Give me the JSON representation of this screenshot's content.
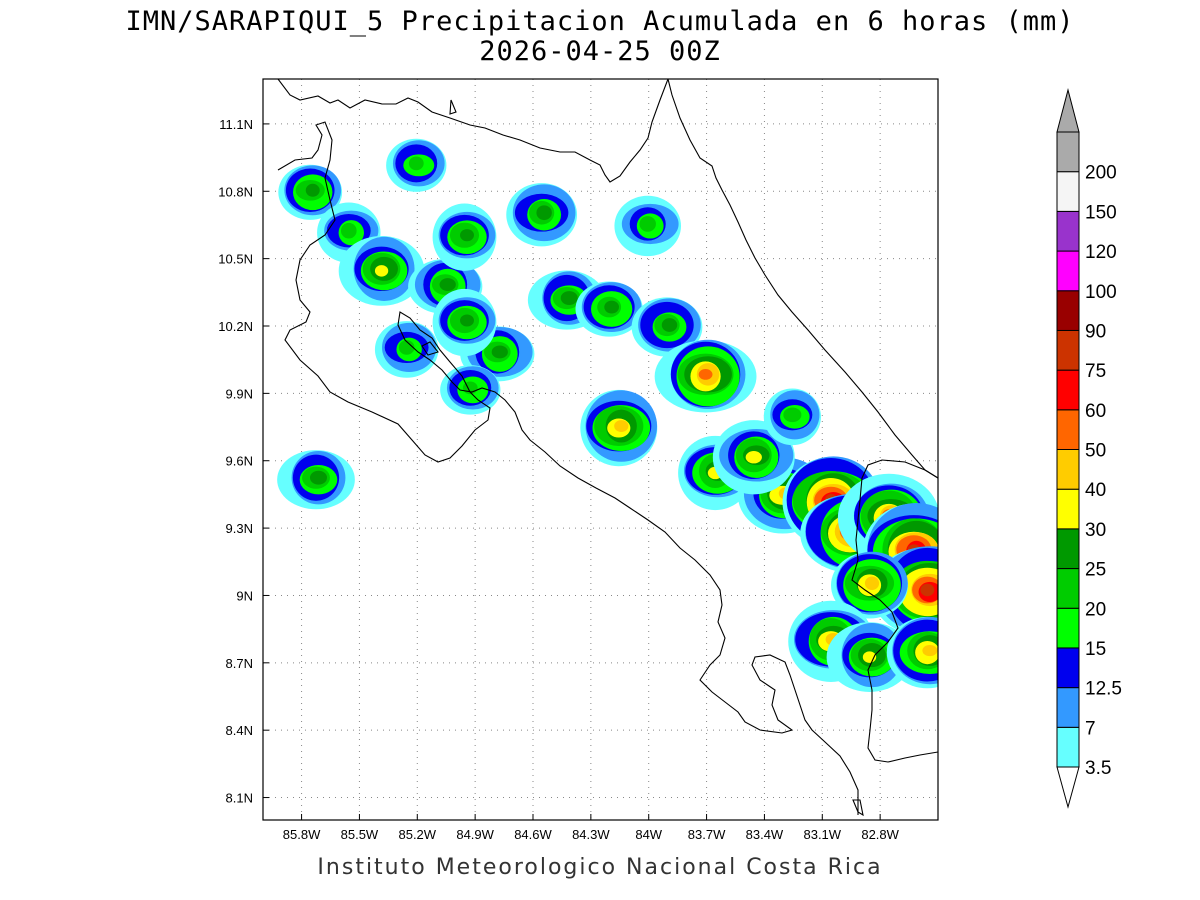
{
  "title": {
    "line1": "IMN/SARAPIQUI_5 Precipitacion Acumulada en 6 horas (mm)",
    "line2": "2026-04-25 00Z"
  },
  "footer": "Instituto Meteorologico Nacional Costa Rica",
  "map": {
    "lon_range": [
      -86.0,
      -82.5
    ],
    "lat_range": [
      8.0,
      11.3
    ],
    "lon_ticks": [
      "85.8W",
      "85.5W",
      "85.2W",
      "84.9W",
      "84.6W",
      "84.3W",
      "84W",
      "83.7W",
      "83.4W",
      "83.1W",
      "82.8W"
    ],
    "lat_ticks": [
      "11.1N",
      "10.8N",
      "10.5N",
      "10.2N",
      "9.9N",
      "9.6N",
      "9.3N",
      "9N",
      "8.7N",
      "8.4N",
      "8.1N"
    ],
    "grid": true,
    "grid_style": "dotted"
  },
  "colorbar": {
    "labels": [
      "3.5",
      "7",
      "12.5",
      "15",
      "20",
      "25",
      "30",
      "40",
      "50",
      "60",
      "75",
      "90",
      "100",
      "120",
      "150",
      "200"
    ],
    "colors": [
      "#66ffff",
      "#3399ff",
      "#0000ee",
      "#00ff00",
      "#00cc00",
      "#009900",
      "#ffff00",
      "#ffcc00",
      "#ff6600",
      "#ff0000",
      "#cc3300",
      "#990000",
      "#ff00ff",
      "#9933cc",
      "#f5f5f5",
      "#aaaaaa"
    ],
    "under_color": "#ffffff",
    "over_color": "#aaaaaa"
  },
  "precipitation_cells": [
    {
      "lon": -85.75,
      "lat": 10.8,
      "peak": "25"
    },
    {
      "lon": -85.55,
      "lat": 10.62,
      "peak": "20"
    },
    {
      "lon": -85.38,
      "lat": 10.45,
      "peak": "30"
    },
    {
      "lon": -85.2,
      "lat": 10.92,
      "peak": "20"
    },
    {
      "lon": -85.05,
      "lat": 10.38,
      "peak": "25"
    },
    {
      "lon": -84.95,
      "lat": 10.6,
      "peak": "25"
    },
    {
      "lon": -84.55,
      "lat": 10.7,
      "peak": "25"
    },
    {
      "lon": -84.42,
      "lat": 10.32,
      "peak": "25"
    },
    {
      "lon": -84.2,
      "lat": 10.28,
      "peak": "25"
    },
    {
      "lon": -84.0,
      "lat": 10.65,
      "peak": "20"
    },
    {
      "lon": -84.15,
      "lat": 9.75,
      "peak": "40"
    },
    {
      "lon": -83.9,
      "lat": 10.2,
      "peak": "25"
    },
    {
      "lon": -83.7,
      "lat": 9.98,
      "peak": "50"
    },
    {
      "lon": -83.65,
      "lat": 9.55,
      "peak": "30"
    },
    {
      "lon": -83.3,
      "lat": 9.45,
      "peak": "40"
    },
    {
      "lon": -83.05,
      "lat": 9.42,
      "peak": "75"
    },
    {
      "lon": -82.95,
      "lat": 9.28,
      "peak": "60"
    },
    {
      "lon": -82.75,
      "lat": 9.35,
      "peak": "50"
    },
    {
      "lon": -82.62,
      "lat": 9.2,
      "peak": "75"
    },
    {
      "lon": -82.55,
      "lat": 9.02,
      "peak": "75"
    },
    {
      "lon": -82.85,
      "lat": 9.05,
      "peak": "40"
    },
    {
      "lon": -83.05,
      "lat": 8.8,
      "peak": "40"
    },
    {
      "lon": -82.85,
      "lat": 8.73,
      "peak": "30"
    },
    {
      "lon": -82.55,
      "lat": 8.75,
      "peak": "40"
    },
    {
      "lon": -84.78,
      "lat": 10.08,
      "peak": "25"
    },
    {
      "lon": -84.95,
      "lat": 10.22,
      "peak": "25"
    },
    {
      "lon": -85.25,
      "lat": 10.1,
      "peak": "20"
    },
    {
      "lon": -85.72,
      "lat": 9.52,
      "peak": "25"
    },
    {
      "lon": -84.92,
      "lat": 9.92,
      "peak": "20"
    },
    {
      "lon": -83.45,
      "lat": 9.62,
      "peak": "30"
    },
    {
      "lon": -83.25,
      "lat": 9.8,
      "peak": "20"
    }
  ]
}
